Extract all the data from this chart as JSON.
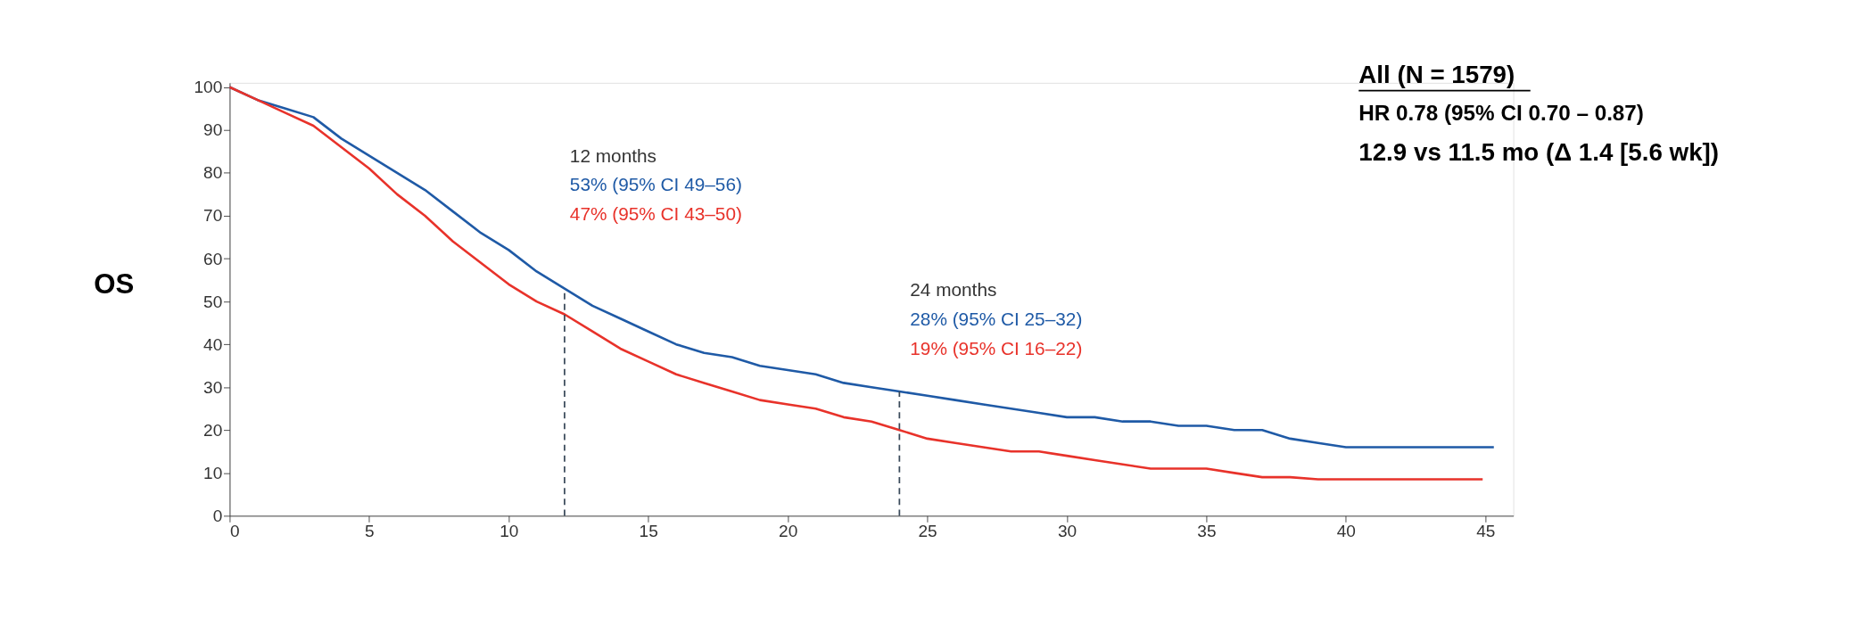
{
  "chart_data": {
    "type": "line",
    "ylabel": "OS",
    "x": [
      0,
      1,
      2,
      3,
      4,
      5,
      6,
      7,
      8,
      9,
      10,
      11,
      12,
      13,
      14,
      15,
      16,
      17,
      18,
      19,
      20,
      21,
      22,
      23,
      24,
      25,
      26,
      27,
      28,
      29,
      30,
      31,
      32,
      33,
      34,
      35,
      36,
      37,
      38,
      39,
      40,
      45.3
    ],
    "series": [
      {
        "color": "#1f5aa6",
        "values": [
          100,
          97,
          95,
          93,
          88,
          84,
          80,
          76,
          71,
          66,
          62,
          57,
          53,
          49,
          46,
          43,
          40,
          38,
          37,
          35,
          34,
          33,
          31,
          30,
          29,
          28,
          27,
          26,
          25,
          24,
          23,
          23,
          22,
          22,
          21,
          21,
          20,
          20,
          18,
          17,
          16,
          16
        ]
      },
      {
        "color": "#e8322a",
        "x": [
          0,
          1,
          2,
          3,
          4,
          5,
          6,
          7,
          8,
          9,
          10,
          11,
          12,
          13,
          14,
          15,
          16,
          17,
          18,
          19,
          20,
          21,
          22,
          23,
          24,
          25,
          26,
          27,
          28,
          29,
          30,
          31,
          32,
          33,
          34,
          35,
          36,
          37,
          38,
          39,
          40,
          44.9
        ],
        "values": [
          100,
          97,
          94,
          91,
          86,
          81,
          75,
          70,
          64,
          59,
          54,
          50,
          47,
          43,
          39,
          36,
          33,
          31,
          29,
          27,
          26,
          25,
          23,
          22,
          20,
          18,
          17,
          16,
          15,
          15,
          14,
          13,
          12,
          11,
          11,
          11,
          10,
          9,
          9,
          8.5,
          8.5,
          8.5
        ]
      }
    ],
    "xlim": [
      0,
      46
    ],
    "ylim": [
      0,
      101
    ],
    "xticks": [
      0,
      5,
      10,
      15,
      20,
      25,
      30,
      35,
      40,
      45
    ],
    "yticks": [
      0,
      10,
      20,
      30,
      40,
      50,
      60,
      70,
      80,
      90,
      100
    ],
    "grid": false,
    "ref_lines": [
      {
        "axis": "x",
        "value": 12,
        "color": "#3a4a5a",
        "line_style": "dashed"
      },
      {
        "axis": "x",
        "value": 24,
        "color": "#3a4a5a",
        "line_style": "dashed"
      }
    ],
    "annotations": [
      "12 months",
      "53% (95% CI 49–56)",
      "47% (95% CI 43–50)",
      "24 months",
      "28% (95% CI 25–32)",
      "19% (95% CI 16–22)",
      "All (N = 1579)",
      "HR 0.78 (95% CI 0.70 – 0.87)",
      "12.9 vs 11.5 mo (Δ 1.4 [5.6 wk])"
    ]
  }
}
